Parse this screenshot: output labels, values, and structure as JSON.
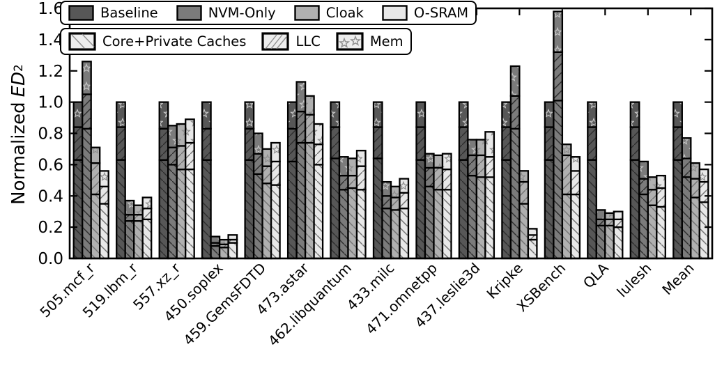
{
  "figure": {
    "ylabel": {
      "prefix": "Normalized",
      "symbol": "ED",
      "exponent": "2"
    }
  },
  "chart_data": {
    "type": "bar",
    "subtype": "grouped-stacked",
    "title": "",
    "xlabel": "",
    "ylabel": "Normalized ED^2",
    "ylim": [
      0,
      1.6
    ],
    "ytick_step": 0.2,
    "ytick_labels": [
      "0.0",
      "0.2",
      "0.4",
      "0.6",
      "0.8",
      "1.0",
      "1.2",
      "1.4",
      "1.6"
    ],
    "grid": "off",
    "legend_position": "upper-left, two rows",
    "categories": [
      "505.mcf_r",
      "519.lbm_r",
      "557.xz_r",
      "450.soplex",
      "459.GemsFDTD",
      "473.astar",
      "462.libquantum",
      "433.milc",
      "471.omnetpp",
      "437.leslie3d",
      "Kripke",
      "XSBench",
      "QLA",
      "lulesh",
      "Mean"
    ],
    "variants": [
      {
        "label": "Baseline",
        "color": "#575757"
      },
      {
        "label": "NVM-Only",
        "color": "#7b7b7b"
      },
      {
        "label": "Cloak",
        "color": "#b0b0b0"
      },
      {
        "label": "O-SRAM",
        "color": "#e8e8e8"
      }
    ],
    "components": [
      {
        "label": "Core+Private Caches",
        "hatch": "backslash"
      },
      {
        "label": "LLC",
        "hatch": "slash"
      },
      {
        "label": "Mem",
        "hatch": "star"
      }
    ],
    "stack_order_note": "values[i].stacks indexed by variants order; inner arrays are [Core+Private Caches, LLC, Mem]",
    "values": [
      {
        "category": "505.mcf_r",
        "stacks": [
          [
            0.63,
            0.21,
            0.16
          ],
          [
            0.83,
            0.22,
            0.21
          ],
          [
            0.41,
            0.2,
            0.1
          ],
          [
            0.35,
            0.11,
            0.1
          ]
        ]
      },
      {
        "category": "519.lbm_r",
        "stacks": [
          [
            0.63,
            0.21,
            0.16
          ],
          [
            0.24,
            0.04,
            0.09
          ],
          [
            0.24,
            0.04,
            0.06
          ],
          [
            0.25,
            0.07,
            0.07
          ]
        ]
      },
      {
        "category": "557.xz_r",
        "stacks": [
          [
            0.63,
            0.2,
            0.17
          ],
          [
            0.6,
            0.11,
            0.14
          ],
          [
            0.57,
            0.15,
            0.14
          ],
          [
            0.57,
            0.17,
            0.15
          ]
        ]
      },
      {
        "category": "450.soplex",
        "stacks": [
          [
            0.63,
            0.2,
            0.17
          ],
          [
            0.08,
            0.02,
            0.04
          ],
          [
            0.07,
            0.02,
            0.03
          ],
          [
            0.1,
            0.02,
            0.03
          ]
        ]
      },
      {
        "category": "459.GemsFDTD",
        "stacks": [
          [
            0.63,
            0.2,
            0.17
          ],
          [
            0.54,
            0.13,
            0.13
          ],
          [
            0.48,
            0.11,
            0.11
          ],
          [
            0.47,
            0.15,
            0.12
          ]
        ]
      },
      {
        "category": "473.astar",
        "stacks": [
          [
            0.62,
            0.21,
            0.17
          ],
          [
            0.74,
            0.2,
            0.19
          ],
          [
            0.74,
            0.18,
            0.12
          ],
          [
            0.6,
            0.13,
            0.13
          ]
        ]
      },
      {
        "category": "462.libquantum",
        "stacks": [
          [
            0.64,
            0.2,
            0.16
          ],
          [
            0.44,
            0.09,
            0.12
          ],
          [
            0.45,
            0.08,
            0.11
          ],
          [
            0.44,
            0.15,
            0.1
          ]
        ]
      },
      {
        "category": "433.milc",
        "stacks": [
          [
            0.64,
            0.2,
            0.16
          ],
          [
            0.32,
            0.08,
            0.09
          ],
          [
            0.31,
            0.08,
            0.07
          ],
          [
            0.32,
            0.1,
            0.09
          ]
        ]
      },
      {
        "category": "471.omnetpp",
        "stacks": [
          [
            0.63,
            0.21,
            0.16
          ],
          [
            0.46,
            0.12,
            0.09
          ],
          [
            0.44,
            0.14,
            0.08
          ],
          [
            0.44,
            0.13,
            0.1
          ]
        ]
      },
      {
        "category": "437.leslie3d",
        "stacks": [
          [
            0.63,
            0.21,
            0.16
          ],
          [
            0.53,
            0.13,
            0.1
          ],
          [
            0.52,
            0.14,
            0.1
          ],
          [
            0.52,
            0.13,
            0.16
          ]
        ]
      },
      {
        "category": "Kripke",
        "stacks": [
          [
            0.63,
            0.21,
            0.16
          ],
          [
            0.83,
            0.21,
            0.19
          ],
          [
            0.35,
            0.14,
            0.07
          ],
          [
            0.12,
            0.03,
            0.04
          ]
        ]
      },
      {
        "category": "XSBench",
        "stacks": [
          [
            0.63,
            0.21,
            0.16
          ],
          [
            1.01,
            0.31,
            0.26
          ],
          [
            0.41,
            0.25,
            0.07
          ],
          [
            0.41,
            0.15,
            0.09
          ]
        ]
      },
      {
        "category": "QLA",
        "stacks": [
          [
            0.63,
            0.21,
            0.16
          ],
          [
            0.21,
            0.04,
            0.06
          ],
          [
            0.21,
            0.04,
            0.04
          ],
          [
            0.2,
            0.05,
            0.05
          ]
        ]
      },
      {
        "category": "lulesh",
        "stacks": [
          [
            0.63,
            0.21,
            0.16
          ],
          [
            0.41,
            0.1,
            0.11
          ],
          [
            0.34,
            0.1,
            0.08
          ],
          [
            0.33,
            0.12,
            0.08
          ]
        ]
      },
      {
        "category": "Mean",
        "stacks": [
          [
            0.63,
            0.21,
            0.16
          ],
          [
            0.52,
            0.12,
            0.13
          ],
          [
            0.39,
            0.12,
            0.1
          ],
          [
            0.36,
            0.13,
            0.08
          ]
        ]
      }
    ]
  }
}
